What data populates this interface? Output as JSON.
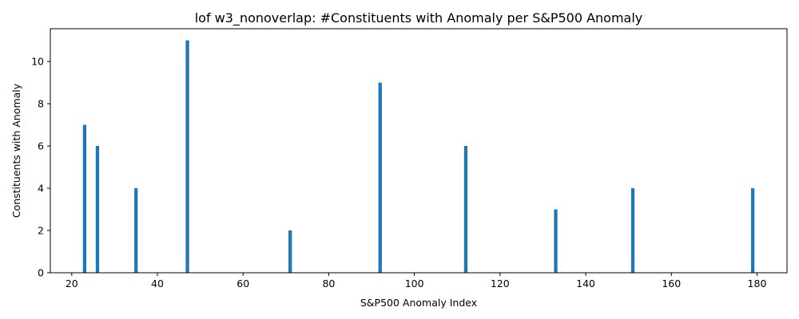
{
  "chart_data": {
    "type": "bar",
    "title": "lof w3_nonoverlap: #Constituents with Anomaly per S&P500 Anomaly",
    "xlabel": "S&P500 Anomaly Index",
    "ylabel": "Constituents with Anomaly",
    "x": [
      23,
      26,
      35,
      47,
      71,
      92,
      112,
      133,
      151,
      179
    ],
    "values": [
      7,
      6,
      4,
      11,
      2,
      9,
      6,
      3,
      4,
      4
    ],
    "xlim": [
      15,
      187
    ],
    "ylim": [
      0,
      11.55
    ],
    "xticks": [
      20,
      40,
      60,
      80,
      100,
      120,
      140,
      160,
      180
    ],
    "yticks": [
      0,
      2,
      4,
      6,
      8,
      10
    ],
    "bar_width": 0.8,
    "grid": false,
    "colors": {
      "bar": "#1f77b4"
    }
  }
}
